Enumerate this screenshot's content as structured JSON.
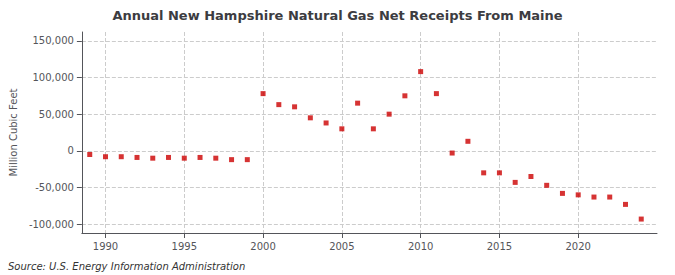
{
  "chart_data": {
    "type": "scatter",
    "title": "Annual New Hampshire Natural Gas Net Receipts From Maine",
    "y_label": "Million Cubic Feet",
    "annotations": [
      "Source: U.S. Energy Information Administration"
    ],
    "x": [
      1989,
      1990,
      1991,
      1992,
      1993,
      1994,
      1995,
      1996,
      1997,
      1998,
      1999,
      2000,
      2001,
      2002,
      2003,
      2004,
      2005,
      2006,
      2007,
      2008,
      2009,
      2010,
      2011,
      2012,
      2013,
      2014,
      2015,
      2016,
      2017,
      2018,
      2019,
      2020,
      2021,
      2022,
      2023,
      2024
    ],
    "values": [
      -5000,
      -8000,
      -8000,
      -9000,
      -10000,
      -9000,
      -10000,
      -9000,
      -10000,
      -12000,
      -12000,
      78000,
      63000,
      60000,
      45000,
      38000,
      30000,
      65000,
      30000,
      50000,
      75000,
      108000,
      78000,
      -3000,
      13000,
      -30000,
      -30000,
      -43000,
      -35000,
      -47000,
      -58000,
      -60000,
      -63000,
      -63000,
      -73000,
      -93000
    ],
    "color": "#cc0000",
    "marker": "square",
    "xlim": [
      1988.5,
      2025
    ],
    "xticks": [
      1990,
      1995,
      2000,
      2005,
      2010,
      2015,
      2020
    ],
    "ylim": [
      -112000,
      162000
    ],
    "yticks": [
      {
        "value": -100000,
        "label": "-100,000"
      },
      {
        "value": -50000,
        "label": "-50,000"
      },
      0,
      {
        "value": 50000,
        "label": "50,000"
      },
      {
        "value": 100000,
        "label": "100,000"
      },
      {
        "value": 150000,
        "label": "150,000"
      }
    ],
    "grid": true
  }
}
